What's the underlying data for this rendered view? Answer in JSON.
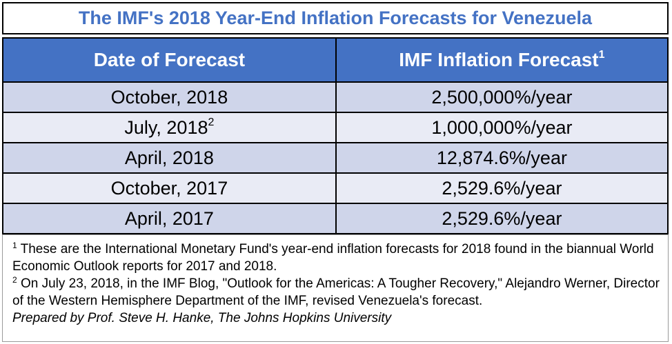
{
  "title": "The IMF's 2018 Year-End Inflation Forecasts for Venezuela",
  "table": {
    "headers": {
      "date": "Date of Forecast",
      "forecast": "IMF Inflation Forecast",
      "forecast_footnote_mark": "1"
    },
    "rows": [
      {
        "date": "October, 2018",
        "date_footnote_mark": "",
        "forecast": "2,500,000%/year"
      },
      {
        "date": "July, 2018",
        "date_footnote_mark": "2",
        "forecast": "1,000,000%/year"
      },
      {
        "date": "April, 2018",
        "date_footnote_mark": "",
        "forecast": "12,874.6%/year"
      },
      {
        "date": "October, 2017",
        "date_footnote_mark": "",
        "forecast": "2,529.6%/year"
      },
      {
        "date": "April, 2017",
        "date_footnote_mark": "",
        "forecast": "2,529.6%/year"
      }
    ]
  },
  "notes": {
    "note1_mark": "1",
    "note1_text": " These are the International Monetary Fund's year-end inflation forecasts for 2018 found in the biannual World Economic Outlook reports for 2017 and 2018.",
    "note2_mark": "2",
    "note2_text": " On July 23, 2018, in the IMF Blog, \"Outlook for the Americas: A Tougher Recovery,\" Alejandro Werner, Director of the Western Hemisphere Department of the IMF, revised Venezuela's forecast.",
    "credit": "Prepared by Prof. Steve H. Hanke, The Johns Hopkins University"
  },
  "colors": {
    "title_text": "#4472c4",
    "header_bg": "#4472c4",
    "row_band_dark": "#cfd5ea",
    "row_band_light": "#e9ebf5"
  }
}
